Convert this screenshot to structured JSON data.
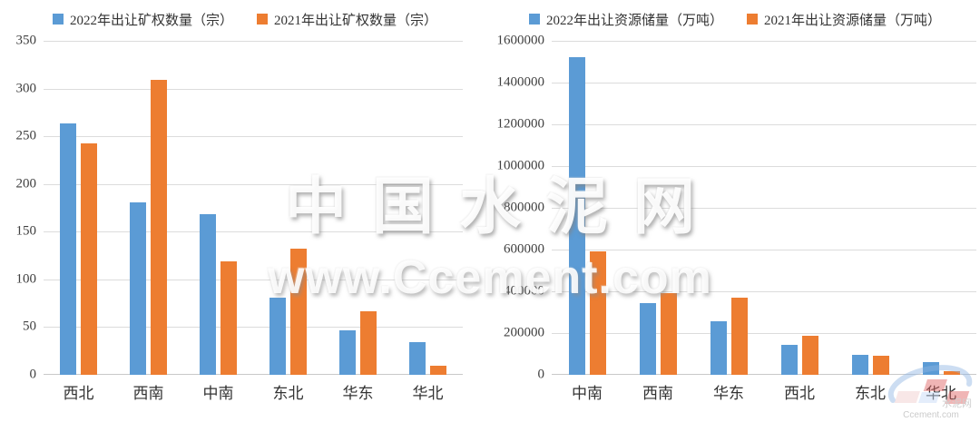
{
  "watermark": {
    "title": "中国水泥网",
    "url": "www.Ccement.com",
    "corner_logo": {
      "site_text": "Ccement.com",
      "brand_chars": "水泥网"
    }
  },
  "colors": {
    "series_2022": "#5B9BD5",
    "series_2021": "#ED7D31",
    "gridline": "#DCDCDC",
    "axis_text": "#404040"
  },
  "charts": [
    {
      "name": "出让矿权数量",
      "chart_data": {
        "type": "bar",
        "title": "",
        "legend_position": "top",
        "grid": true,
        "categories": [
          "西北",
          "西南",
          "中南",
          "东北",
          "华东",
          "华北"
        ],
        "series": [
          {
            "name": "2022年出让矿权数量（宗）",
            "color": "#5B9BD5",
            "values": [
              263,
              181,
              168,
              81,
              47,
              34
            ]
          },
          {
            "name": "2021年出让矿权数量（宗）",
            "color": "#ED7D31",
            "values": [
              243,
              309,
              119,
              132,
              67,
              10
            ]
          }
        ],
        "xlabel": "",
        "ylabel": "",
        "ylim": [
          0,
          350
        ],
        "ytick_step": 50
      }
    },
    {
      "name": "出让资源储量",
      "chart_data": {
        "type": "bar",
        "title": "",
        "legend_position": "top",
        "grid": true,
        "categories": [
          "中南",
          "西南",
          "华东",
          "西北",
          "东北",
          "华北"
        ],
        "series": [
          {
            "name": "2022年出让资源储量（万吨）",
            "color": "#5B9BD5",
            "values": [
              1520000,
              345000,
              255000,
              145000,
              95000,
              60000
            ]
          },
          {
            "name": "2021年出让资源储量（万吨）",
            "color": "#ED7D31",
            "values": [
              590000,
              390000,
              370000,
              185000,
              90000,
              18000
            ]
          }
        ],
        "xlabel": "",
        "ylabel": "",
        "ylim": [
          0,
          1600000
        ],
        "ytick_step": 200000
      }
    }
  ]
}
